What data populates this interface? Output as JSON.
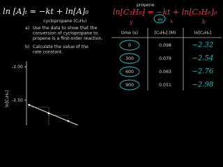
{
  "header": {
    "general_law": "ln [A]ₜ = −kt + ln[A]₀",
    "reactant": "cyclopropane (C₃H₆)",
    "product": "propene",
    "specific_law": "ln[C₃H₆] = −kt + ln[C₃H₆]₀",
    "symbols": [
      "y",
      "m",
      "x",
      "b"
    ]
  },
  "question_a": {
    "marker": "a)",
    "lines": [
      "Use the data to show that the",
      "conversion of cyclopropane to",
      "propene is a first-order reaction."
    ]
  },
  "question_b": {
    "marker": "b)",
    "lines": [
      "Calculate the value of the",
      "rate constant."
    ]
  },
  "table": {
    "headers": [
      "time (s)",
      "[C₃H₆]  (M)",
      "ln[C₃H₆]"
    ],
    "rows": [
      [
        "0",
        "0.098",
        "−2.32"
      ],
      [
        "300",
        "0.079",
        "−2.54"
      ],
      [
        "600",
        "0.063",
        "−2.76"
      ],
      [
        "900",
        "0.051",
        "−2.98"
      ]
    ]
  },
  "graph": {
    "y_label": "ln[C₃H₆]",
    "y_tick_labels": [
      "-2.00",
      "-2.50"
    ]
  }
}
